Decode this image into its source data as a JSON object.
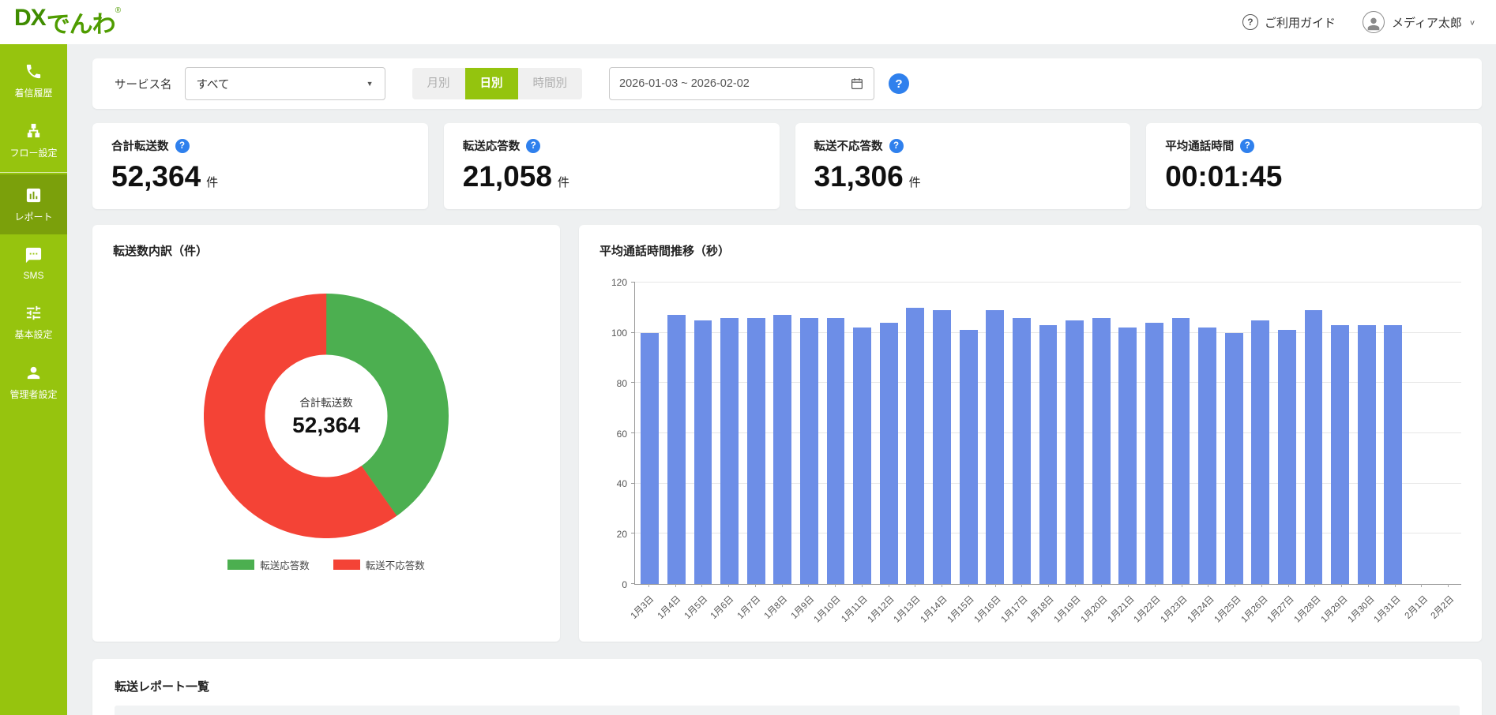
{
  "brand": {
    "dx": "DX",
    "name": "でんわ",
    "reg": "®"
  },
  "icons": {
    "help": "?",
    "chevron_down": "∨",
    "dropdown_arrow": "▼"
  },
  "header": {
    "guide": "ご利用ガイド",
    "user": "メディア太郎"
  },
  "sidebar": {
    "items": [
      {
        "label": "着信履歴"
      },
      {
        "label": "フロー設定"
      },
      {
        "label": "レポート"
      },
      {
        "label": "SMS"
      },
      {
        "label": "基本設定"
      },
      {
        "label": "管理者設定"
      }
    ]
  },
  "filters": {
    "service_label": "サービス名",
    "service_value": "すべて",
    "periods": [
      "月別",
      "日別",
      "時間別"
    ],
    "selected_period": "日別",
    "date_range": "2026-01-03 ~ 2026-02-02"
  },
  "stats": [
    {
      "title": "合計転送数",
      "value": "52,364",
      "unit": "件"
    },
    {
      "title": "転送応答数",
      "value": "21,058",
      "unit": "件"
    },
    {
      "title": "転送不応答数",
      "value": "31,306",
      "unit": "件"
    },
    {
      "title": "平均通話時間",
      "value": "00:01:45",
      "unit": ""
    }
  ],
  "report_list_title": "転送レポート一覧",
  "chart_data": [
    {
      "type": "pie",
      "title": "転送数内訳（件）",
      "center_label": "合計転送数",
      "center_value": "52,364",
      "legend_position": "bottom",
      "slices": [
        {
          "label": "転送応答数",
          "value": 21058,
          "color": "#4caf50"
        },
        {
          "label": "転送不応答数",
          "value": 31306,
          "color": "#f44336"
        }
      ]
    },
    {
      "type": "bar",
      "title": "平均通話時間推移（秒）",
      "color": "#6d8ee7",
      "ylim": [
        0,
        120
      ],
      "yticks": [
        0,
        20,
        40,
        60,
        80,
        100,
        120
      ],
      "grid": true,
      "categories": [
        "1月3日",
        "1月4日",
        "1月5日",
        "1月6日",
        "1月7日",
        "1月8日",
        "1月9日",
        "1月10日",
        "1月11日",
        "1月12日",
        "1月13日",
        "1月14日",
        "1月15日",
        "1月16日",
        "1月17日",
        "1月18日",
        "1月19日",
        "1月20日",
        "1月21日",
        "1月22日",
        "1月23日",
        "1月24日",
        "1月25日",
        "1月26日",
        "1月27日",
        "1月28日",
        "1月29日",
        "1月30日",
        "1月31日",
        "2月1日",
        "2月2日"
      ],
      "values": [
        100,
        107,
        105,
        106,
        106,
        107,
        106,
        106,
        102,
        104,
        110,
        109,
        101,
        109,
        106,
        103,
        105,
        106,
        102,
        104,
        106,
        102,
        100,
        105,
        101,
        109,
        103,
        103,
        103,
        0,
        0
      ]
    }
  ]
}
